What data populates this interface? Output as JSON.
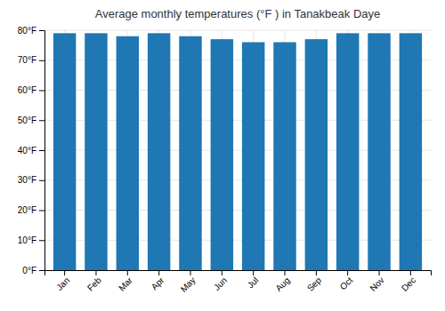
{
  "chart_data": {
    "type": "bar",
    "title": "Average monthly temperatures (°F ) in Tanakbeak Daye",
    "categories": [
      "Jan",
      "Feb",
      "Mar",
      "Apr",
      "May",
      "Jun",
      "Jul",
      "Aug",
      "Sep",
      "Oct",
      "Nov",
      "Dec"
    ],
    "values": [
      79,
      79,
      78,
      79,
      78,
      77,
      76,
      76,
      77,
      79,
      79,
      79
    ],
    "ylim": [
      0,
      80
    ],
    "yticks": [
      {
        "value": 0,
        "label": "0°F"
      },
      {
        "value": 10,
        "label": "10°F"
      },
      {
        "value": 20,
        "label": "20°F"
      },
      {
        "value": 30,
        "label": "30°F"
      },
      {
        "value": 40,
        "label": "40°F"
      },
      {
        "value": 50,
        "label": "50°F"
      },
      {
        "value": 60,
        "label": "60°F"
      },
      {
        "value": 70,
        "label": "70°F"
      },
      {
        "value": 80,
        "label": "80°F"
      }
    ],
    "grid": true
  }
}
